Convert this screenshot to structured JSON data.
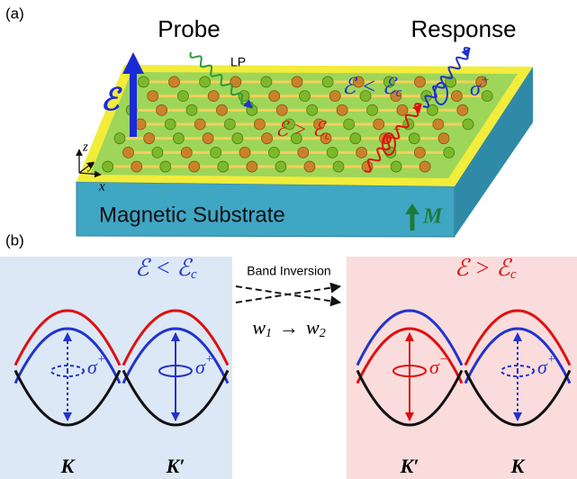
{
  "panel_a": {
    "label": "(a)",
    "probe": "Probe",
    "response": "Response",
    "lp": "LP",
    "field": "ℰ",
    "cond_low": {
      "text": "ℰ < ℰ",
      "sub": "c"
    },
    "cond_high": {
      "text": "ℰ > ℰ",
      "sub": "c"
    },
    "sigma_plus": {
      "text": "σ",
      "sup": "+"
    },
    "sigma_minus": {
      "text": "σ",
      "sup": "−"
    },
    "axes": {
      "z": "z",
      "y": "y",
      "x": "x"
    },
    "substrate": "Magnetic Substrate",
    "magnetization": "M"
  },
  "panel_b": {
    "label": "(b)",
    "left": {
      "condition": {
        "text": "ℰ < ℰ",
        "sub": "c"
      },
      "valleys": [
        {
          "label": "K",
          "sigma": {
            "text": "σ",
            "sup": "+"
          }
        },
        {
          "label": "K′",
          "sigma": {
            "text": "σ",
            "sup": "+"
          }
        }
      ]
    },
    "transition": {
      "label": "Band Inversion",
      "from": {
        "text": "w",
        "sub": "1"
      },
      "arrow": "→",
      "to": {
        "text": "w",
        "sub": "2"
      }
    },
    "right": {
      "condition": {
        "text": "ℰ > ℰ",
        "sub": "c"
      },
      "valleys": [
        {
          "label": "K′",
          "sigma": {
            "text": "σ",
            "sup": "−"
          }
        },
        {
          "label": "K",
          "sigma": {
            "text": "σ",
            "sup": "+"
          }
        }
      ]
    }
  }
}
